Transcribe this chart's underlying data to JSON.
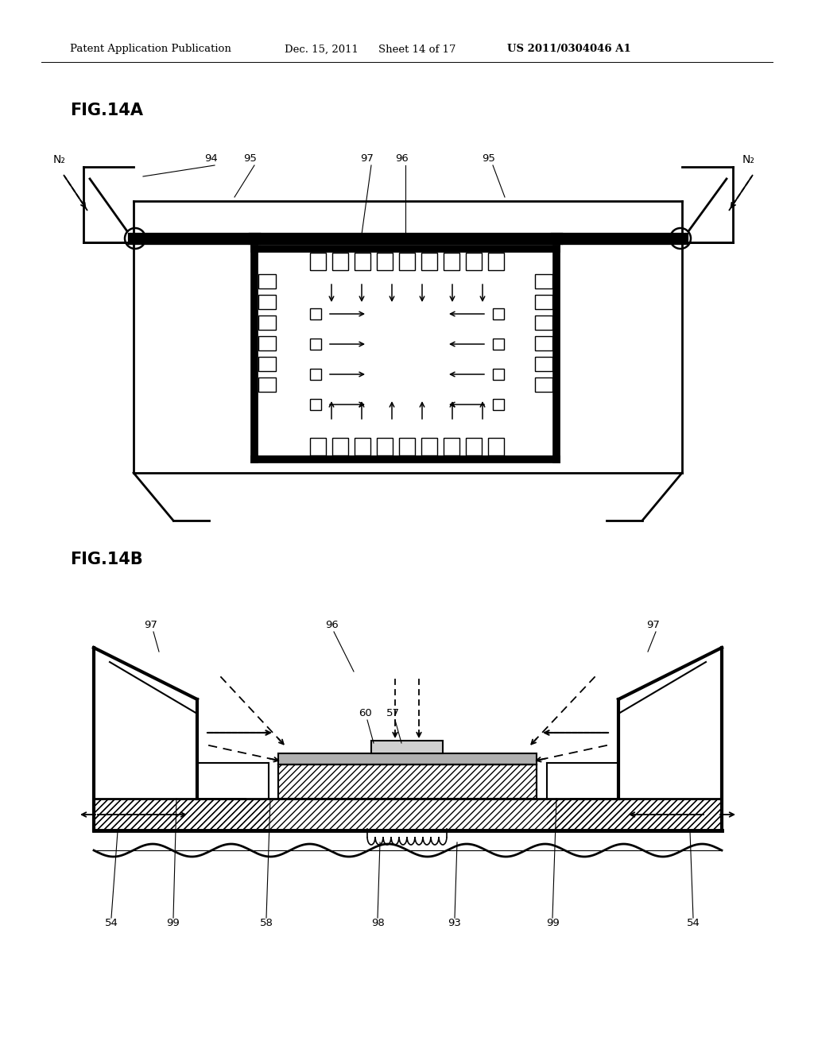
{
  "bg_color": "#ffffff",
  "header_text": "Patent Application Publication",
  "header_date": "Dec. 15, 2011",
  "header_sheet": "Sheet 14 of 17",
  "header_patent": "US 2011/0304046 A1",
  "fig14a_label": "FIG.14A",
  "fig14b_label": "FIG.14B"
}
